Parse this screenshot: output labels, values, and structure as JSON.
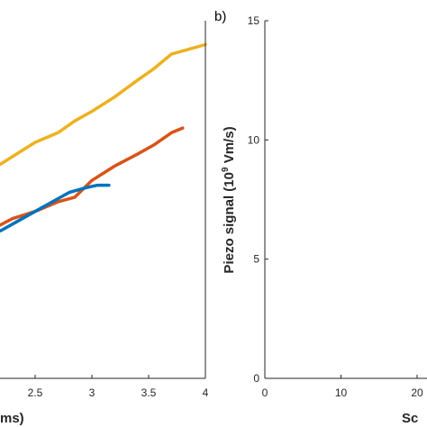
{
  "chart_data": [
    {
      "type": "line",
      "xlabel": "ms)",
      "ylabel": "",
      "xlim": [
        1.55,
        4.0
      ],
      "ylim": [
        0,
        15
      ],
      "x_ticks": [
        "2.5",
        "3",
        "3.5",
        "4"
      ],
      "grid": false,
      "series": [
        {
          "color": "#EDB120",
          "x": [
            1.55,
            1.8,
            1.95,
            2.1,
            2.3,
            2.5,
            2.7,
            2.85,
            3.0,
            3.2,
            3.4,
            3.55,
            3.7,
            3.85,
            4.0
          ],
          "y": [
            7.8,
            7.9,
            8.3,
            8.7,
            9.3,
            9.9,
            10.3,
            10.8,
            11.2,
            11.8,
            12.5,
            13.0,
            13.6,
            13.8,
            14.0
          ]
        },
        {
          "color": "#D95319",
          "x": [
            1.55,
            1.75,
            1.9,
            2.1,
            2.3,
            2.5,
            2.7,
            2.85,
            3.0,
            3.2,
            3.4,
            3.55,
            3.7,
            3.8
          ],
          "y": [
            5.3,
            5.6,
            5.9,
            6.2,
            6.7,
            7.0,
            7.4,
            7.6,
            8.3,
            8.9,
            9.4,
            9.8,
            10.3,
            10.5
          ]
        },
        {
          "color": "#0072BD",
          "x": [
            1.55,
            1.7,
            1.85,
            2.0,
            2.2,
            2.35,
            2.5,
            2.65,
            2.8,
            2.95,
            3.05,
            3.15
          ],
          "y": [
            4.9,
            5.2,
            5.5,
            5.8,
            6.2,
            6.6,
            7.0,
            7.4,
            7.8,
            8.0,
            8.1,
            8.1
          ]
        }
      ]
    },
    {
      "type": "line",
      "panel_label": "b)",
      "xlabel": "Sc",
      "ylabel": "Piezo signal (10",
      "ylabel_sup": "9",
      "ylabel_rest": " Vm/s)",
      "xlim": [
        0,
        28
      ],
      "ylim": [
        0,
        15
      ],
      "x_ticks": [
        "0",
        "10",
        "20"
      ],
      "y_ticks": [
        "0",
        "5",
        "10",
        "15"
      ],
      "grid": false,
      "series": []
    }
  ]
}
